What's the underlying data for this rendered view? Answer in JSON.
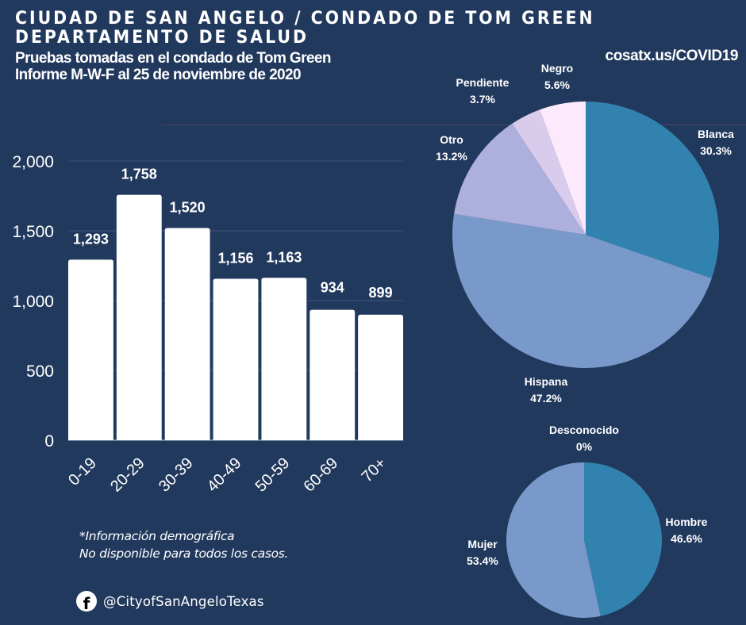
{
  "header": {
    "title_line1": "CIUDAD DE SAN ANGELO / CONDADO DE TOM GREEN",
    "title_line2": "DEPARTAMENTO DE SALUD",
    "subtitle_line1": "Pruebas tomadas en el condado de Tom Green",
    "subtitle_line2": "Informe M-W-F al 25 de noviembre de 2020",
    "url": "cosatx.us/COVID19"
  },
  "footer": {
    "note_line1": "*Información demográfica",
    "note_line2": "No disponible para todos los casos.",
    "facebook_icon": "facebook-icon",
    "facebook_glyph": "f",
    "handle": "@CityofSanAngeloTexas"
  },
  "colors": {
    "background": "#22395e",
    "bar": "#ffffff",
    "gridline": "#3f5578",
    "blanca": "#3282b0",
    "hispana": "#7899c9",
    "otro": "#adafdc",
    "pendiente": "#d9cbeb",
    "negro": "#fde9fc",
    "hombre": "#3282b0",
    "mujer": "#7899c9"
  },
  "chart_data": [
    {
      "type": "bar",
      "title": "Pruebas por grupo de edad",
      "xlabel": "",
      "ylabel": "",
      "categories": [
        "0-19",
        "20-29",
        "30-39",
        "40-49",
        "50-59",
        "60-69",
        "70+"
      ],
      "values": [
        1293,
        1758,
        1520,
        1156,
        1163,
        934,
        899
      ],
      "value_labels": [
        "1,293",
        "1,758",
        "1,520",
        "1,156",
        "1,163",
        "934",
        "899"
      ],
      "ylim": [
        0,
        2000
      ],
      "yticks": [
        0,
        500,
        1000,
        1500,
        2000
      ],
      "ytick_labels": [
        "0",
        "500",
        "1,000",
        "1,500",
        "2,000"
      ],
      "grid": true
    },
    {
      "type": "pie",
      "title": "Raza / Etnia",
      "slices": [
        {
          "label": "Blanca",
          "value": 30.3,
          "display": "30.3%",
          "color": "#3282b0"
        },
        {
          "label": "Hispana",
          "value": 47.2,
          "display": "47.2%",
          "color": "#7899c9"
        },
        {
          "label": "Otro",
          "value": 13.2,
          "display": "13.2%",
          "color": "#adafdc"
        },
        {
          "label": "Pendiente",
          "value": 3.7,
          "display": "3.7%",
          "color": "#d9cbeb"
        },
        {
          "label": "Negro",
          "value": 5.6,
          "display": "5.6%",
          "color": "#fde9fc"
        }
      ]
    },
    {
      "type": "pie",
      "title": "Sexo",
      "slices": [
        {
          "label": "Hombre",
          "value": 46.6,
          "display": "46.6%",
          "color": "#3282b0"
        },
        {
          "label": "Mujer",
          "value": 53.4,
          "display": "53.4%",
          "color": "#7899c9"
        },
        {
          "label": "Desconocido",
          "value": 0,
          "display": "0%",
          "color": "#adafdc"
        }
      ]
    }
  ]
}
